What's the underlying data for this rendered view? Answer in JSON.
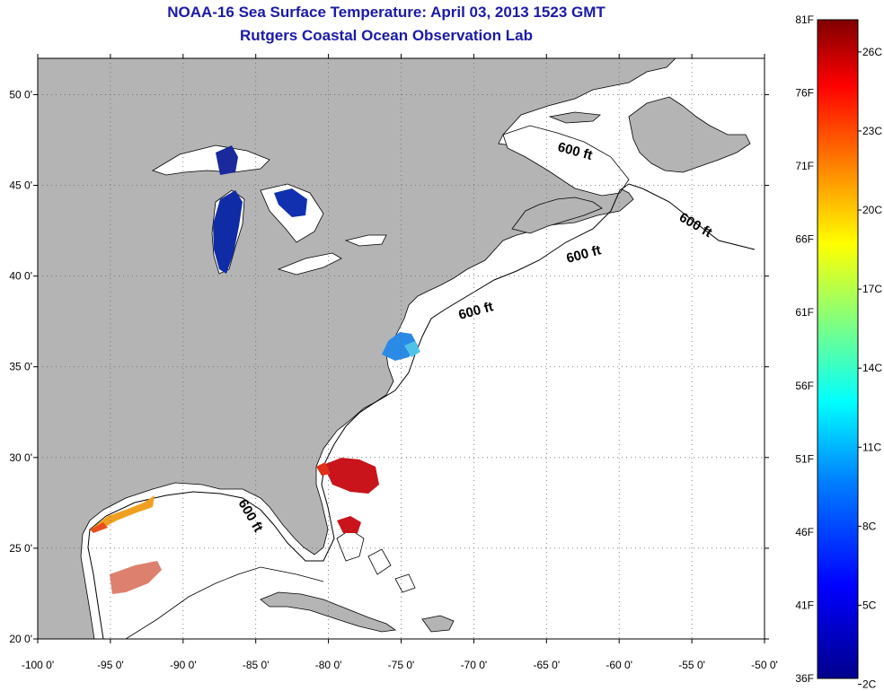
{
  "title": "NOAA-16 Sea Surface Temperature:  April 03, 2013 1523 GMT",
  "subtitle": "Rutgers Coastal Ocean Observation Lab",
  "map": {
    "lon_range": [
      -100,
      -50
    ],
    "lat_range": [
      20,
      52
    ],
    "lon_ticks": [
      "-100 0'",
      "-95 0'",
      "-90 0'",
      "-85 0'",
      "-80 0'",
      "-75 0'",
      "-70 0'",
      "-65 0'",
      "-60 0'",
      "-55 0'",
      "-50 0'"
    ],
    "lat_ticks": [
      "20 0'",
      "25 0'",
      "30 0'",
      "35 0'",
      "40 0'",
      "45 0'",
      "50 0'"
    ],
    "contour_label": "600 ft",
    "colors": {
      "land": "#b4b4b4",
      "ocean": "#ffffff",
      "title": "#1a1aa6"
    }
  },
  "colorbar": {
    "f_labels": [
      "81F",
      "76F",
      "71F",
      "66F",
      "61F",
      "56F",
      "51F",
      "46F",
      "41F",
      "36F"
    ],
    "c_labels": [
      "26C",
      "23C",
      "20C",
      "17C",
      "14C",
      "11C",
      "8C",
      "5C",
      "2C"
    ],
    "range_f": [
      36,
      81
    ],
    "colors": [
      "#00008c",
      "#0000ff",
      "#0080ff",
      "#00ffff",
      "#80ff80",
      "#ffff00",
      "#ff8000",
      "#ff0000",
      "#800000"
    ]
  }
}
